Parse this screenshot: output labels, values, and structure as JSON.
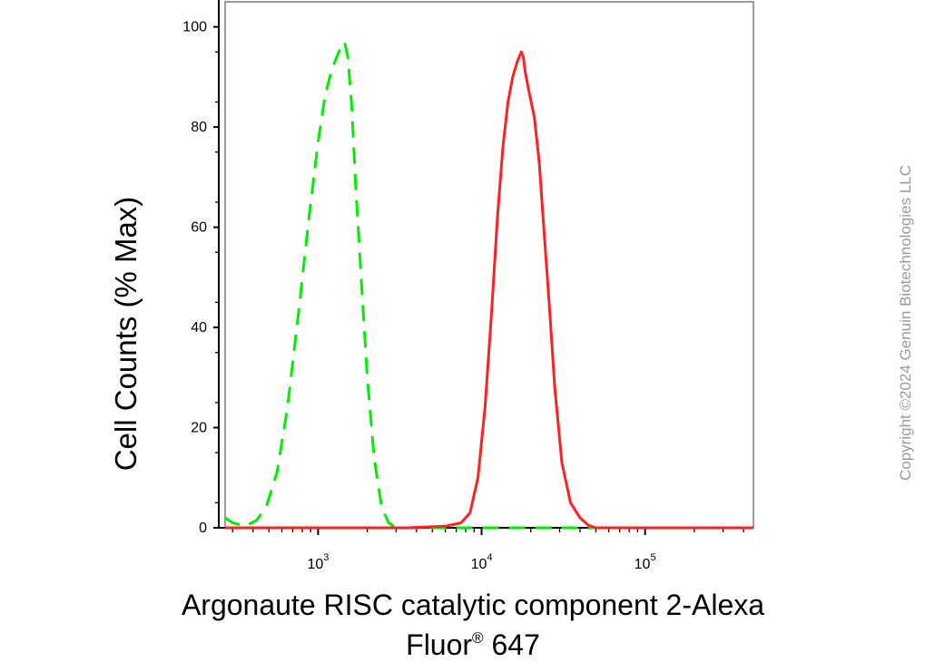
{
  "chart_data": {
    "type": "line",
    "xscale": "log",
    "xlim": [
      270,
      460000
    ],
    "ylim": [
      0,
      105
    ],
    "y_ticks": [
      0,
      20,
      40,
      60,
      80,
      100
    ],
    "x_ticks": [
      {
        "value": 1000,
        "base": "10",
        "exp": "3"
      },
      {
        "value": 10000,
        "base": "10",
        "exp": "4"
      },
      {
        "value": 100000,
        "base": "10",
        "exp": "5"
      }
    ],
    "ylabel": "Cell Counts (% Max)",
    "xlabel": {
      "line1": "Argonaute RISC catalytic component 2-Alexa",
      "line2_main": "Fluor",
      "line2_sup": "®",
      "line2_tail": " 647"
    },
    "grid": false,
    "legend": false,
    "series": [
      {
        "color": "#00ee00",
        "style": "dashed",
        "x": [
          270,
          300,
          360,
          420,
          480,
          560,
          650,
          760,
          880,
          1000,
          1100,
          1200,
          1300,
          1380,
          1450,
          1520,
          1600,
          1700,
          1850,
          2000,
          2200,
          2450,
          2700,
          3000,
          6000,
          30000,
          460000
        ],
        "y": [
          2,
          1,
          0.3,
          1.5,
          4,
          11,
          24,
          43,
          62,
          77,
          86,
          91,
          94,
          96,
          97,
          94,
          85,
          68,
          48,
          30,
          14,
          4,
          1,
          0,
          0,
          0,
          0
        ]
      },
      {
        "color": "#ff2020",
        "style": "solid",
        "x": [
          270,
          3500,
          6000,
          7500,
          8500,
          9500,
          10500,
          11500,
          12500,
          13500,
          14500,
          15500,
          16500,
          17500,
          18000,
          18500,
          19500,
          21000,
          22500,
          24000,
          26000,
          28000,
          31000,
          35000,
          40000,
          45000,
          50000,
          60000,
          460000
        ],
        "y": [
          0,
          0,
          0.3,
          1,
          3,
          10,
          24,
          43,
          62,
          76,
          85,
          90,
          93,
          95,
          94,
          91,
          87,
          82,
          73,
          60,
          44,
          28,
          13,
          5,
          2,
          0.5,
          0,
          0,
          0
        ]
      }
    ]
  },
  "watermark": "Copyright ©2024 Genuin Biotechnologies LLC"
}
